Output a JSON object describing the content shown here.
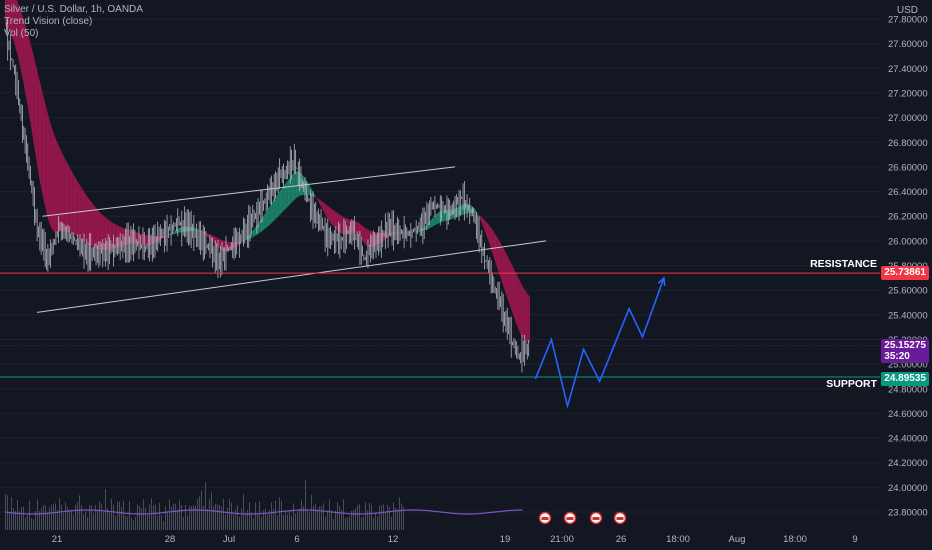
{
  "legend": {
    "symbol": "Silver / U.S. Dollar, 1h, OANDA",
    "indicator": "Trend Vision (close)",
    "volume": "Vol (50)"
  },
  "currency": "USD",
  "levels": {
    "resistance": {
      "label": "RESISTANCE",
      "price": "25.73861",
      "value": 25.73861,
      "color": "#f23645"
    },
    "support": {
      "label": "SUPPORT",
      "price": "24.89535",
      "value": 24.89535,
      "color": "#089981"
    },
    "current": {
      "price": "25.15275",
      "value": 25.15275,
      "countdown": "35:20",
      "color": "#7b1fa2"
    }
  },
  "colors": {
    "background": "#131722",
    "up": "#26a69a",
    "down": "#ef5350",
    "candle": "#b2b5be",
    "channel": "#c8cad0",
    "projection": "#2962ff"
  },
  "chart_data": {
    "type": "line",
    "title": "Silver / U.S. Dollar, 1h, OANDA",
    "ylim": [
      23.7,
      27.85
    ],
    "y_ticks": [
      "27.80000",
      "27.60000",
      "27.40000",
      "27.20000",
      "27.00000",
      "26.80000",
      "26.60000",
      "26.40000",
      "26.20000",
      "26.00000",
      "25.80000",
      "25.60000",
      "25.40000",
      "25.20000",
      "25.00000",
      "24.80000",
      "24.60000",
      "24.40000",
      "24.20000",
      "24.00000",
      "23.80000"
    ],
    "x_ticks": [
      "21",
      "28",
      "Jul",
      "6",
      "12",
      "19",
      "21:00",
      "26",
      "18:00",
      "Aug",
      "18:00",
      "9"
    ],
    "series": [
      {
        "values": [
          [
            0,
            27.75
          ],
          [
            4,
            27.3
          ],
          [
            8,
            26.7
          ],
          [
            12,
            26.1
          ],
          [
            16,
            25.85
          ],
          [
            20,
            26.1
          ],
          [
            24,
            26.05
          ],
          [
            28,
            25.95
          ],
          [
            34,
            25.9
          ],
          [
            40,
            25.95
          ],
          [
            46,
            26.0
          ],
          [
            52,
            25.95
          ],
          [
            58,
            26.05
          ],
          [
            64,
            26.15
          ],
          [
            70,
            26.1
          ],
          [
            76,
            25.95
          ],
          [
            80,
            25.85
          ],
          [
            84,
            25.95
          ],
          [
            90,
            26.1
          ],
          [
            96,
            26.3
          ],
          [
            100,
            26.45
          ],
          [
            104,
            26.55
          ],
          [
            108,
            26.65
          ],
          [
            111,
            26.45
          ],
          [
            115,
            26.25
          ],
          [
            120,
            26.05
          ],
          [
            125,
            26.0
          ],
          [
            130,
            26.1
          ],
          [
            134,
            25.85
          ],
          [
            138,
            26.0
          ],
          [
            144,
            26.1
          ],
          [
            150,
            26.05
          ],
          [
            156,
            26.15
          ],
          [
            160,
            26.3
          ],
          [
            166,
            26.25
          ],
          [
            171,
            26.35
          ],
          [
            175,
            26.2
          ],
          [
            178,
            25.95
          ],
          [
            182,
            25.65
          ],
          [
            186,
            25.4
          ],
          [
            190,
            25.15
          ],
          [
            192,
            25.05
          ],
          [
            194,
            25.12
          ],
          [
            196,
            25.15
          ]
        ]
      }
    ],
    "volume": {
      "name": "Vol (50)",
      "values": [
        9,
        5,
        4,
        6,
        4,
        3,
        5,
        4,
        3,
        4,
        3,
        3,
        4,
        3,
        2,
        3,
        4,
        3,
        3,
        5,
        3,
        2,
        3,
        4,
        3,
        4,
        3,
        4,
        3,
        2,
        3,
        3,
        4,
        3,
        3,
        4,
        3,
        5,
        4,
        3,
        3,
        3,
        4,
        3,
        3,
        3,
        4,
        5,
        6,
        4
      ]
    },
    "channel": {
      "upper": [
        [
          14,
          26.2
        ],
        [
          168,
          26.6
        ]
      ],
      "lower": [
        [
          12,
          25.42
        ],
        [
          202,
          26.0
        ]
      ]
    },
    "projection": [
      [
        198,
        24.88
      ],
      [
        204,
        25.2
      ],
      [
        210,
        24.66
      ],
      [
        216,
        25.12
      ],
      [
        222,
        24.86
      ],
      [
        233,
        25.45
      ],
      [
        238,
        25.22
      ],
      [
        246,
        25.7
      ]
    ],
    "resistance": 25.73861,
    "support": 24.89535
  }
}
